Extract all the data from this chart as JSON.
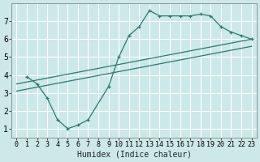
{
  "xlabel": "Humidex (Indice chaleur)",
  "bg_color": "#cce8e8",
  "grid_color": "#ffffff",
  "line_color": "#2a7a6f",
  "xlim": [
    -0.5,
    23.5
  ],
  "ylim": [
    0.5,
    8.0
  ],
  "line1_x": [
    1,
    2,
    3,
    4,
    5,
    6,
    7,
    9,
    10,
    11,
    12,
    13,
    14,
    15,
    16,
    17,
    18,
    19,
    20,
    21,
    22,
    23
  ],
  "line1_y": [
    3.9,
    3.5,
    2.7,
    1.5,
    1.0,
    1.2,
    1.5,
    3.35,
    5.0,
    6.2,
    6.7,
    7.6,
    7.3,
    7.3,
    7.3,
    7.3,
    7.4,
    7.3,
    6.7,
    6.4,
    6.2,
    6.0
  ],
  "line2_x": [
    0,
    23
  ],
  "line2_y": [
    3.5,
    6.0
  ],
  "line3_x": [
    0,
    23
  ],
  "line3_y": [
    3.1,
    5.6
  ],
  "xticks": [
    0,
    1,
    2,
    3,
    4,
    5,
    6,
    7,
    8,
    9,
    10,
    11,
    12,
    13,
    14,
    15,
    16,
    17,
    18,
    19,
    20,
    21,
    22,
    23
  ],
  "yticks": [
    1,
    2,
    3,
    4,
    5,
    6,
    7
  ]
}
